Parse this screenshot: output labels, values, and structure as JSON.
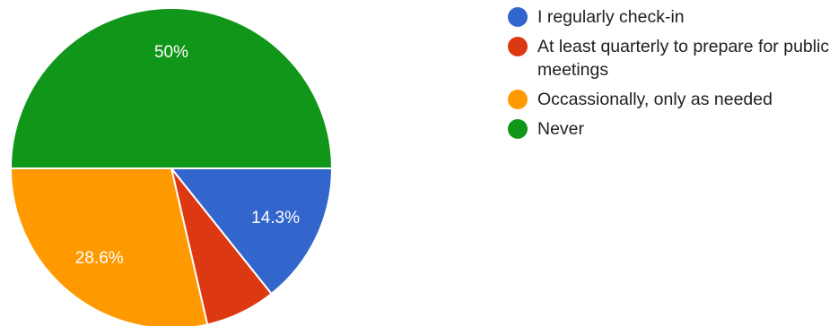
{
  "chart_data": {
    "type": "pie",
    "slices": [
      {
        "label": "I regularly check-in",
        "value": 14.3,
        "display": "14.3%",
        "color": "#3366cc"
      },
      {
        "label": "At least quarterly to prepare for public meetings",
        "value": 7.1,
        "display": "",
        "color": "#dc3912"
      },
      {
        "label": "Occassionally, only as needed",
        "value": 28.6,
        "display": "28.6%",
        "color": "#ff9900"
      },
      {
        "label": "Never",
        "value": 50,
        "display": "50%",
        "color": "#109618"
      }
    ],
    "legend_position": "right"
  }
}
